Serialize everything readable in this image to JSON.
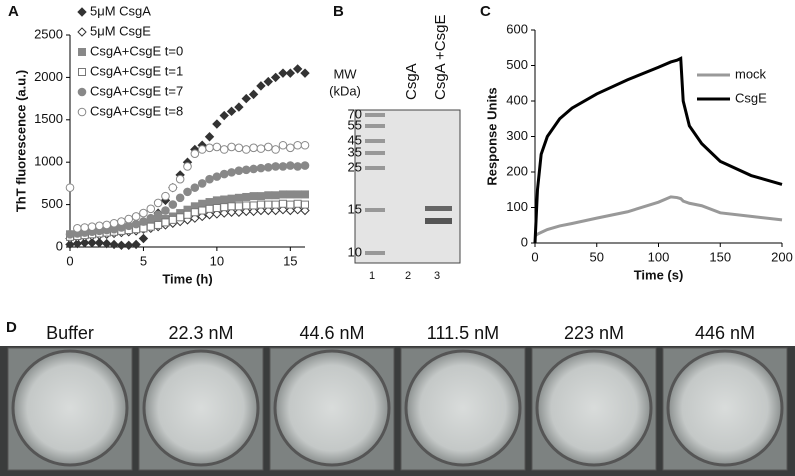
{
  "panel_labels": [
    "A",
    "B",
    "C",
    "D"
  ],
  "chart_data": [
    {
      "type": "scatter",
      "xlabel": "Time (h)",
      "ylabel": "ThT fluorescence (a.u.)",
      "xlim": [
        0,
        16
      ],
      "xticks": [
        0,
        5,
        10,
        15
      ],
      "ylim": [
        0,
        2500
      ],
      "yticks": [
        0,
        500,
        1000,
        1500,
        2000,
        2500
      ],
      "x": [
        0,
        0.5,
        1,
        1.5,
        2,
        2.5,
        3,
        3.5,
        4,
        4.5,
        5,
        5.5,
        6,
        6.5,
        7,
        7.5,
        8,
        8.5,
        9,
        9.5,
        10,
        10.5,
        11,
        11.5,
        12,
        12.5,
        13,
        13.5,
        14,
        14.5,
        15,
        15.5,
        16
      ],
      "series": [
        {
          "name": "5μM CsgA",
          "color": "#333333",
          "marker": "diamond",
          "values": [
            30,
            40,
            50,
            50,
            50,
            40,
            30,
            20,
            20,
            30,
            100,
            250,
            400,
            550,
            700,
            850,
            1000,
            1150,
            1200,
            1300,
            1450,
            1550,
            1600,
            1650,
            1750,
            1800,
            1900,
            1950,
            2000,
            2050,
            2050,
            2100,
            2050
          ]
        },
        {
          "name": "5μM CsgE",
          "color": "#333333",
          "marker": "diamond-open",
          "values": [
            100,
            110,
            120,
            130,
            140,
            150,
            160,
            170,
            180,
            190,
            210,
            220,
            240,
            260,
            280,
            300,
            320,
            340,
            360,
            380,
            390,
            400,
            410,
            410,
            420,
            420,
            430,
            430,
            430,
            440,
            430,
            440,
            430
          ]
        },
        {
          "name": "CsgA+CsgE t=0",
          "color": "#888888",
          "marker": "square",
          "values": [
            150,
            160,
            170,
            180,
            190,
            200,
            210,
            220,
            230,
            240,
            260,
            280,
            300,
            330,
            360,
            400,
            440,
            480,
            510,
            530,
            550,
            560,
            570,
            580,
            590,
            600,
            600,
            610,
            610,
            620,
            620,
            620,
            620
          ]
        },
        {
          "name": "CsgA+CsgE t=1",
          "color": "#777777",
          "marker": "square-open",
          "values": [
            120,
            130,
            140,
            150,
            160,
            170,
            180,
            190,
            200,
            210,
            220,
            240,
            260,
            290,
            320,
            350,
            380,
            410,
            430,
            450,
            460,
            470,
            480,
            480,
            490,
            490,
            500,
            500,
            500,
            510,
            500,
            510,
            500
          ]
        },
        {
          "name": "CsgA+CsgE t=7",
          "color": "#888888",
          "marker": "circle",
          "values": [
            150,
            160,
            170,
            180,
            190,
            200,
            210,
            230,
            250,
            270,
            300,
            340,
            380,
            430,
            500,
            580,
            650,
            700,
            750,
            800,
            830,
            860,
            880,
            900,
            910,
            920,
            930,
            940,
            950,
            950,
            960,
            950,
            960
          ]
        },
        {
          "name": "CsgA+CsgE t=8",
          "color": "#888888",
          "marker": "circle-open",
          "values": [
            700,
            220,
            230,
            240,
            250,
            260,
            280,
            300,
            330,
            360,
            400,
            450,
            520,
            600,
            700,
            800,
            950,
            1100,
            1150,
            1170,
            1180,
            1150,
            1180,
            1170,
            1150,
            1170,
            1160,
            1180,
            1150,
            1200,
            1170,
            1200,
            1200
          ]
        }
      ]
    },
    {
      "type": "line",
      "xlabel": "Time (s)",
      "ylabel": "Response Units",
      "xlim": [
        0,
        200
      ],
      "xticks": [
        0,
        50,
        100,
        150,
        200
      ],
      "ylim": [
        0,
        600
      ],
      "yticks": [
        0,
        100,
        200,
        300,
        400,
        500,
        600
      ],
      "x": [
        0,
        2,
        5,
        10,
        20,
        30,
        50,
        75,
        100,
        110,
        115,
        118,
        120,
        125,
        135,
        150,
        175,
        200
      ],
      "series": [
        {
          "name": "mock",
          "color": "#999999",
          "values": [
            20,
            25,
            30,
            38,
            48,
            55,
            70,
            88,
            115,
            130,
            128,
            125,
            118,
            112,
            105,
            85,
            75,
            65
          ]
        },
        {
          "name": "CsgE",
          "color": "#000000",
          "values": [
            0,
            150,
            250,
            300,
            350,
            380,
            420,
            460,
            495,
            510,
            515,
            520,
            400,
            330,
            280,
            230,
            190,
            165
          ]
        }
      ]
    }
  ],
  "gel": {
    "mw_label": "MW",
    "mw_unit": "(kDa)",
    "markers": [
      "70",
      "55",
      "45",
      "35",
      "25",
      "15",
      "10"
    ],
    "lane_headers": [
      "CsgA",
      "CsgA +CsgE"
    ],
    "lane_numbers": [
      "1",
      "2",
      "3"
    ]
  },
  "wells": [
    "Buffer",
    "22.3 nM",
    "44.6 nM",
    "111.5 nM",
    "223 nM",
    "446 nM"
  ]
}
